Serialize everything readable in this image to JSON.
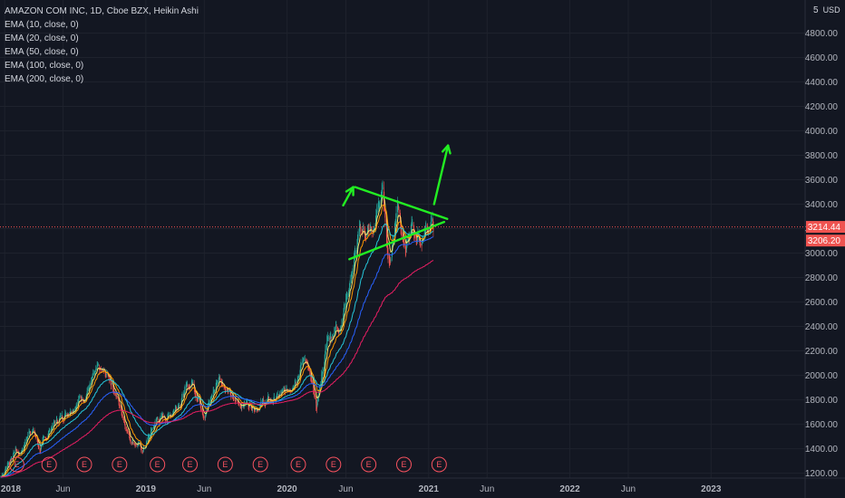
{
  "legend": {
    "title": "AMAZON COM INC, 1D, Cboe BZX, Heikin Ashi",
    "indicators": [
      "EMA (10, close, 0)",
      "EMA (20, close, 0)",
      "EMA (50, close, 0)",
      "EMA (100, close, 0)",
      "EMA (200, close, 0)"
    ]
  },
  "axis": {
    "currency": "USD",
    "corner_num": "5"
  },
  "price_labels": {
    "last": "3214.44",
    "prev": "3206.20"
  },
  "colors": {
    "background": "#131722",
    "up": "#26a69a",
    "down": "#ef5350",
    "ema10": "#f7e26b",
    "ema20": "#ff9800",
    "ema50": "#26c6da",
    "ema100": "#2962ff",
    "ema200": "#e91e63",
    "drawing": "#22ee22",
    "earnings": "#f7525f"
  },
  "earnings_marker": "E",
  "chart_data": {
    "type": "candlestick",
    "style": "Heikin Ashi",
    "y_ticks": [
      1200,
      1400,
      1600,
      1800,
      2000,
      2200,
      2400,
      2600,
      2800,
      3000,
      3200,
      3400,
      3600,
      3800,
      4000,
      4200,
      4400,
      4600,
      4800
    ],
    "y_tick_labels": [
      "1200.00",
      "1400.00",
      "1600.00",
      "1800.00",
      "2000.00",
      "2200.00",
      "2400.00",
      "2600.00",
      "2800.00",
      "3000.00",
      "3200.00",
      "3400.00",
      "3600.00",
      "3800.00",
      "4000.00",
      "4200.00",
      "4400.00",
      "4600.00",
      "4800.00"
    ],
    "ylim": [
      1160,
      5070
    ],
    "x_labels": [
      {
        "label": "2018",
        "date": "2018-01-01",
        "year": true
      },
      {
        "label": "Jun",
        "date": "2018-06-01",
        "year": false
      },
      {
        "label": "2019",
        "date": "2019-01-01",
        "year": true
      },
      {
        "label": "Jun",
        "date": "2019-06-01",
        "year": false
      },
      {
        "label": "2020",
        "date": "2020-01-01",
        "year": true
      },
      {
        "label": "Jun",
        "date": "2020-06-01",
        "year": false
      },
      {
        "label": "2021",
        "date": "2021-01-01",
        "year": true
      },
      {
        "label": "Jun",
        "date": "2021-06-01",
        "year": false
      },
      {
        "label": "2022",
        "date": "2022-01-01",
        "year": true
      },
      {
        "label": "Jun",
        "date": "2022-06-01",
        "year": false
      },
      {
        "label": "2023",
        "date": "2023-01-01",
        "year": true
      }
    ],
    "xlim": [
      "2017-12-20",
      "2023-09-01"
    ],
    "price_path": [
      [
        "2017-12-22",
        1170
      ],
      [
        "2018-01-29",
        1400
      ],
      [
        "2018-02-08",
        1350
      ],
      [
        "2018-03-12",
        1590
      ],
      [
        "2018-04-02",
        1390
      ],
      [
        "2018-05-01",
        1580
      ],
      [
        "2018-06-20",
        1740
      ],
      [
        "2018-07-25",
        1840
      ],
      [
        "2018-08-30",
        2030
      ],
      [
        "2018-10-01",
        1980
      ],
      [
        "2018-11-20",
        1500
      ],
      [
        "2018-12-24",
        1380
      ],
      [
        "2019-01-28",
        1640
      ],
      [
        "2019-03-01",
        1670
      ],
      [
        "2019-04-30",
        1950
      ],
      [
        "2019-06-03",
        1690
      ],
      [
        "2019-07-11",
        2010
      ],
      [
        "2019-08-15",
        1780
      ],
      [
        "2019-10-15",
        1760
      ],
      [
        "2019-11-26",
        1800
      ],
      [
        "2019-12-30",
        1860
      ],
      [
        "2020-01-31",
        2050
      ],
      [
        "2020-02-19",
        2160
      ],
      [
        "2020-03-16",
        1700
      ],
      [
        "2020-04-14",
        2300
      ],
      [
        "2020-05-20",
        2450
      ],
      [
        "2020-07-10",
        3200
      ],
      [
        "2020-08-10",
        3150
      ],
      [
        "2020-09-02",
        3530
      ],
      [
        "2020-09-21",
        2900
      ],
      [
        "2020-10-13",
        3450
      ],
      [
        "2020-11-03",
        3000
      ],
      [
        "2020-11-20",
        3200
      ],
      [
        "2020-12-10",
        3100
      ],
      [
        "2021-01-04",
        3250
      ],
      [
        "2021-01-13",
        3214
      ]
    ],
    "earnings_dates": [
      "2018-02-01",
      "2018-04-26",
      "2018-07-26",
      "2018-10-25",
      "2019-01-31",
      "2019-04-25",
      "2019-07-25",
      "2019-10-24",
      "2020-01-30",
      "2020-04-30",
      "2020-07-30",
      "2020-10-29",
      "2021-01-28"
    ],
    "annotations": [
      {
        "type": "trendline",
        "from": [
          "2020-06-10",
          2950
        ],
        "to": [
          "2021-02-10",
          3255
        ]
      },
      {
        "type": "trendline",
        "from": [
          "2020-06-25",
          3540
        ],
        "to": [
          "2021-02-18",
          3280
        ]
      },
      {
        "type": "arrow",
        "from": [
          "2021-01-15",
          3400
        ],
        "to": [
          "2021-02-20",
          3880
        ]
      },
      {
        "type": "arrow",
        "from": [
          "2020-05-25",
          3390
        ],
        "to": [
          "2020-06-20",
          3540
        ]
      }
    ]
  }
}
